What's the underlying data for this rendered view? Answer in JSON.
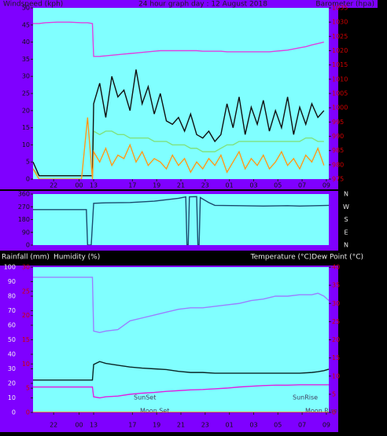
{
  "chart_data": [
    {
      "type": "line",
      "title": "24 hour graph day : 12 August 2018",
      "ylabel": "Windspeed (kph)",
      "y2label": "Barometer (hpa)",
      "x": [
        0,
        0.5,
        1,
        2,
        3,
        4,
        4.5,
        4.9,
        5,
        5.5,
        6,
        6.5,
        7,
        7.5,
        8,
        8.5,
        9,
        9.5,
        10,
        10.5,
        11,
        11.5,
        12,
        12.5,
        13,
        13.5,
        14,
        14.5,
        15,
        15.5,
        16,
        16.5,
        17,
        17.5,
        18,
        18.5,
        19,
        19.5,
        20,
        20.5,
        21,
        21.5,
        22,
        22.5,
        23,
        23.5,
        24
      ],
      "xlim": [
        0,
        24.4
      ],
      "xticks": [
        {
          "value": 1.7,
          "label": "22"
        },
        {
          "value": 3.8,
          "label": "00"
        },
        {
          "value": 5,
          "label": "13"
        },
        {
          "value": 8.2,
          "label": "17"
        },
        {
          "value": 10.2,
          "label": "19"
        },
        {
          "value": 12.2,
          "label": "21"
        },
        {
          "value": 14.2,
          "label": "23"
        },
        {
          "value": 16.2,
          "label": "01"
        },
        {
          "value": 18.2,
          "label": "03"
        },
        {
          "value": 20.2,
          "label": "05"
        },
        {
          "value": 22.2,
          "label": "07"
        },
        {
          "value": 24.2,
          "label": "09"
        }
      ],
      "ylim": [
        0,
        50
      ],
      "yticks": [
        0,
        5,
        10,
        15,
        20,
        25,
        30,
        35,
        40,
        45,
        50
      ],
      "y2lim": [
        975,
        1035
      ],
      "y2ticks": [
        975,
        980,
        985,
        990,
        995,
        1000,
        1005,
        1010,
        1015,
        1020,
        1025,
        1030,
        1035
      ],
      "series": [
        {
          "color": "#7fe27f",
          "values": [
            3,
            1,
            1,
            1,
            1,
            1,
            1,
            1,
            14,
            13,
            14,
            14,
            13,
            13,
            12,
            12,
            12,
            12,
            11,
            11,
            11,
            10,
            10,
            10,
            9,
            9,
            8,
            8,
            8,
            9,
            10,
            10,
            11,
            11,
            11,
            11,
            11,
            11,
            11,
            11,
            11,
            11,
            11,
            12,
            12,
            11,
            11
          ]
        },
        {
          "color": "#101010",
          "values": [
            5,
            1,
            1,
            1,
            1,
            1,
            1,
            1,
            22,
            28,
            18,
            30,
            24,
            26,
            20,
            32,
            22,
            27,
            19,
            25,
            17,
            16,
            18,
            14,
            19,
            13,
            12,
            14,
            11,
            13,
            22,
            15,
            24,
            13,
            21,
            16,
            23,
            14,
            20,
            15,
            24,
            13,
            21,
            16,
            22,
            18,
            20
          ]
        },
        {
          "color": "#ff9a1a",
          "values": [
            3,
            0,
            0,
            0,
            0,
            0,
            18,
            0,
            8,
            5,
            9,
            4,
            7,
            6,
            10,
            5,
            8,
            4,
            6,
            5,
            3,
            7,
            4,
            6,
            2,
            5,
            3,
            6,
            4,
            7,
            2,
            5,
            8,
            3,
            6,
            4,
            7,
            3,
            5,
            8,
            4,
            6,
            3,
            7,
            5,
            9,
            4
          ]
        },
        {
          "color": "#e040e0",
          "axis": "y2",
          "values": [
            1029.5,
            1029.5,
            1029.8,
            1030,
            1030,
            1029.8,
            1029.8,
            1029.5,
            1018,
            1018,
            1018.2,
            1018.4,
            1018.6,
            1018.8,
            1019,
            1019.2,
            1019.4,
            1019.6,
            1019.8,
            1020,
            1020,
            1020,
            1020,
            1020,
            1020,
            1020,
            1019.8,
            1019.8,
            1019.8,
            1019.8,
            1019.6,
            1019.6,
            1019.6,
            1019.6,
            1019.6,
            1019.6,
            1019.6,
            1019.6,
            1019.8,
            1020,
            1020.2,
            1020.6,
            1021,
            1021.4,
            1022,
            1022.5,
            1023
          ]
        }
      ]
    },
    {
      "type": "line",
      "x": [
        0,
        4.4,
        4.5,
        4.8,
        5,
        6,
        8,
        10,
        12,
        12.6,
        12.7,
        12.8,
        12.9,
        13.5,
        13.6,
        13.7,
        13.8,
        14.5,
        15,
        17,
        19,
        21,
        22,
        24.4
      ],
      "xlim": [
        0,
        24.4
      ],
      "ylim": [
        0,
        360
      ],
      "yticks": [
        0,
        90,
        180,
        270,
        360
      ],
      "y2lim": [
        0,
        360
      ],
      "y2ticks": [
        {
          "value": 0,
          "label": "N"
        },
        {
          "value": 90,
          "label": "E"
        },
        {
          "value": 180,
          "label": "S"
        },
        {
          "value": 270,
          "label": "W"
        },
        {
          "value": 360,
          "label": "N"
        }
      ],
      "series": [
        {
          "color": "#1a4a6e",
          "values": [
            250,
            250,
            0,
            0,
            295,
            298,
            300,
            310,
            330,
            340,
            0,
            0,
            340,
            342,
            0,
            0,
            335,
            300,
            280,
            278,
            275,
            278,
            275,
            280
          ]
        }
      ]
    },
    {
      "type": "line",
      "ylabel": "Humidity (%)",
      "y3label": "Rainfall (mm)",
      "y2label": "Temperature (°C)Dew Point (°C)",
      "annotations": [
        "SunSet",
        "SunRise",
        "Moon Set",
        "Moon Rise"
      ],
      "x": [
        0,
        2,
        4,
        4.9,
        5,
        5.5,
        6,
        7,
        8,
        9,
        10,
        11,
        12,
        13,
        14,
        15,
        16,
        17,
        18,
        19,
        20,
        21,
        22,
        23,
        23.5,
        24,
        24.4
      ],
      "xlim": [
        0,
        24.4
      ],
      "xticks": [
        {
          "value": 1.7,
          "label": "22"
        },
        {
          "value": 3.8,
          "label": "00"
        },
        {
          "value": 5,
          "label": "13"
        },
        {
          "value": 8.2,
          "label": "17"
        },
        {
          "value": 10.2,
          "label": "19"
        },
        {
          "value": 12.2,
          "label": "21"
        },
        {
          "value": 14.2,
          "label": "23"
        },
        {
          "value": 16.2,
          "label": "01"
        },
        {
          "value": 18.2,
          "label": "03"
        },
        {
          "value": 20.2,
          "label": "05"
        },
        {
          "value": 22.2,
          "label": "07"
        },
        {
          "value": 24.2,
          "label": "09"
        }
      ],
      "ylim": [
        0,
        100
      ],
      "yticks": [
        0,
        10,
        20,
        30,
        40,
        50,
        60,
        70,
        80,
        90,
        100
      ],
      "y2lim": [
        0,
        40
      ],
      "y2ticks": [
        0,
        5,
        10,
        15,
        20,
        25,
        30,
        35,
        40
      ],
      "y3lim": [
        0,
        30
      ],
      "y3ticks": [
        0,
        5,
        10,
        15,
        20,
        25,
        30
      ],
      "series": [
        {
          "color": "#9a80ff",
          "values": [
            93,
            93,
            93,
            93,
            56,
            55,
            56,
            57,
            63,
            65,
            67,
            69,
            71,
            72,
            72,
            73,
            74,
            75,
            77,
            78,
            80,
            80,
            81,
            81,
            82,
            80,
            77
          ]
        },
        {
          "color": "#0a2626",
          "axis": "y2",
          "values": [
            8.9,
            8.9,
            8.9,
            8.9,
            13.2,
            14,
            13.5,
            13,
            12.5,
            12.2,
            12,
            11.8,
            11.3,
            11,
            11,
            10.8,
            10.8,
            10.8,
            10.8,
            10.8,
            10.8,
            10.8,
            10.8,
            11,
            11.2,
            11.5,
            11.9
          ]
        },
        {
          "color": "#e020e0",
          "axis": "y2",
          "values": [
            7,
            7,
            7,
            7,
            4.3,
            4,
            4.3,
            4.5,
            5,
            5.3,
            5.5,
            5.8,
            6,
            6.2,
            6.3,
            6.5,
            6.7,
            7,
            7.2,
            7.4,
            7.5,
            7.5,
            7.6,
            7.6,
            7.6,
            7.6,
            7.6
          ]
        },
        {
          "color": "#ff5a00",
          "axis": "y3",
          "values": [
            0,
            0,
            0,
            0,
            0,
            0,
            0,
            0,
            0,
            0,
            0,
            0,
            0,
            0,
            0,
            0,
            0,
            0,
            0,
            0,
            0,
            0,
            0,
            0,
            0,
            0,
            0
          ]
        }
      ]
    }
  ]
}
